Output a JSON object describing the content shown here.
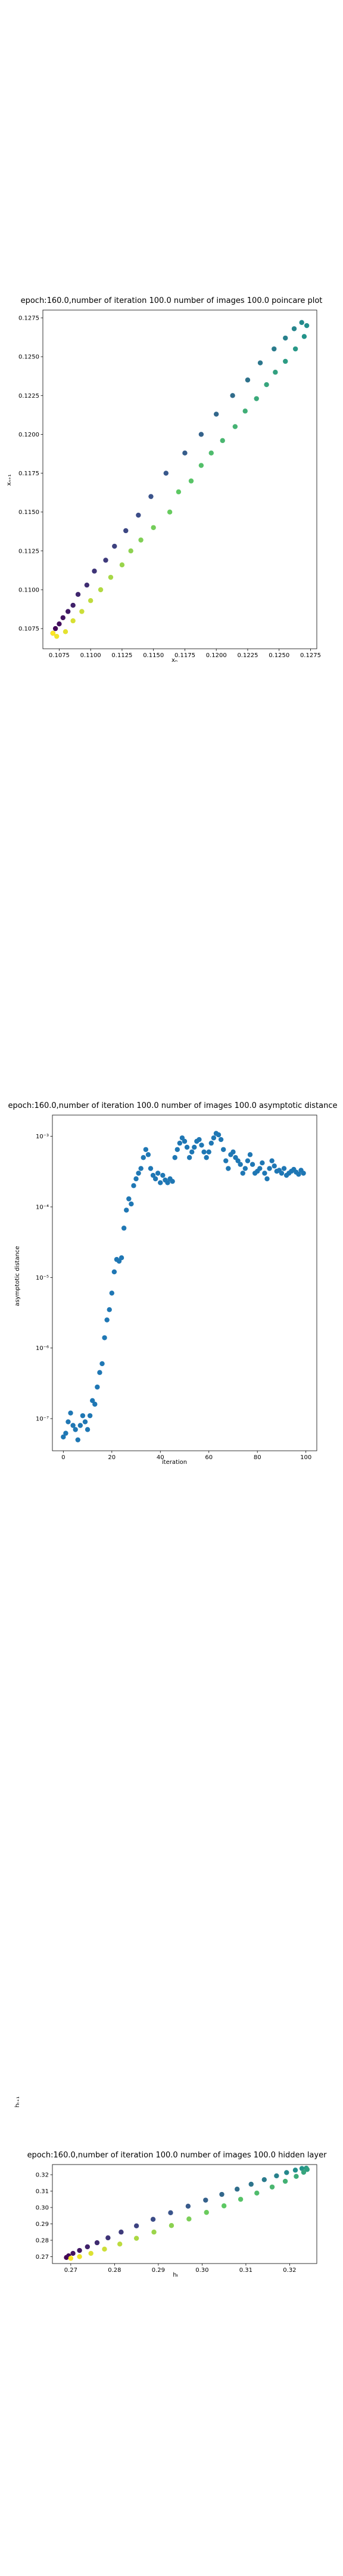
{
  "page": {
    "background": "#ffffff"
  },
  "chart_data": [
    {
      "type": "scatter",
      "title": "epoch:160.0,number of iteration 100.0 number of images 100.0 poincare plot",
      "xlabel": "xₙ",
      "ylabel": "xₙ₊₁",
      "xlim": [
        0.1062,
        0.128
      ],
      "ylim": [
        0.1062,
        0.128
      ],
      "xticks": [
        0.1075,
        0.11,
        0.1125,
        0.115,
        0.1175,
        0.12,
        0.1225,
        0.125,
        0.1275
      ],
      "xtick_labels": [
        "0.1075",
        "0.1100",
        "0.1125",
        "0.1150",
        "0.1175",
        "0.1200",
        "0.1225",
        "0.1250",
        "0.1275"
      ],
      "yticks": [
        0.1075,
        0.11,
        0.1125,
        0.115,
        0.1175,
        0.12,
        0.1225,
        0.125,
        0.1275
      ],
      "ytick_labels": [
        "0.1075",
        "0.1100",
        "0.1125",
        "0.1150",
        "0.1175",
        "0.1200",
        "0.1225",
        "0.1250",
        "0.1275"
      ],
      "colormap": "viridis",
      "x": [
        0.107,
        0.1072,
        0.1075,
        0.1078,
        0.1082,
        0.1086,
        0.109,
        0.1097,
        0.1103,
        0.1112,
        0.1119,
        0.1128,
        0.1138,
        0.1148,
        0.116,
        0.1175,
        0.1188,
        0.12,
        0.1213,
        0.1225,
        0.1235,
        0.1246,
        0.1255,
        0.1262,
        0.1268,
        0.1272,
        0.127,
        0.1263,
        0.1255,
        0.1247,
        0.124,
        0.1232,
        0.1223,
        0.1215,
        0.1205,
        0.1196,
        0.1188,
        0.118,
        0.117,
        0.1163,
        0.115,
        0.114,
        0.1132,
        0.1125,
        0.1116,
        0.1108,
        0.11,
        0.1093,
        0.1086,
        0.108,
        0.1073,
        0.107
      ],
      "y": [
        0.1072,
        0.1075,
        0.1078,
        0.1082,
        0.1086,
        0.109,
        0.1097,
        0.1103,
        0.1112,
        0.1119,
        0.1128,
        0.1138,
        0.1148,
        0.116,
        0.1175,
        0.1188,
        0.12,
        0.1213,
        0.1225,
        0.1235,
        0.1246,
        0.1255,
        0.1262,
        0.1268,
        0.1272,
        0.127,
        0.1263,
        0.1255,
        0.1247,
        0.124,
        0.1232,
        0.1223,
        0.1215,
        0.1205,
        0.1196,
        0.1188,
        0.118,
        0.117,
        0.1163,
        0.115,
        0.114,
        0.1132,
        0.1125,
        0.1116,
        0.1108,
        0.11,
        0.1093,
        0.1086,
        0.108,
        0.1073,
        0.107,
        0.1072
      ],
      "grid": false
    },
    {
      "type": "scatter",
      "title": "epoch:160.0,number of iteration 100.0  number of images 100.0 asymptotic distance",
      "xlabel": "iteration",
      "ylabel": "asymptotic distance",
      "log_y": true,
      "xlim": [
        -4.5,
        104.5
      ],
      "ylim": [
        3.5e-08,
        0.002
      ],
      "xticks": [
        0,
        20,
        40,
        60,
        80,
        100
      ],
      "xtick_labels": [
        "0",
        "20",
        "40",
        "60",
        "80",
        "100"
      ],
      "yticks": [
        1e-07,
        1e-06,
        1e-05,
        0.0001,
        0.001
      ],
      "ytick_labels": [
        "10⁻⁷",
        "10⁻⁶",
        "10⁻⁵",
        "10⁻⁴",
        "10⁻³"
      ],
      "color": "#1f77b4",
      "x": [
        0,
        1,
        2,
        3,
        4,
        5,
        6,
        7,
        8,
        9,
        10,
        11,
        12,
        13,
        14,
        15,
        16,
        17,
        18,
        19,
        20,
        21,
        22,
        23,
        24,
        25,
        26,
        27,
        28,
        29,
        30,
        31,
        32,
        33,
        34,
        35,
        36,
        37,
        38,
        39,
        40,
        41,
        42,
        43,
        44,
        45,
        46,
        47,
        48,
        49,
        50,
        51,
        52,
        53,
        54,
        55,
        56,
        57,
        58,
        59,
        60,
        61,
        62,
        63,
        64,
        65,
        66,
        67,
        68,
        69,
        70,
        71,
        72,
        73,
        74,
        75,
        76,
        77,
        78,
        79,
        80,
        81,
        82,
        83,
        84,
        85,
        86,
        87,
        88,
        89,
        90,
        91,
        92,
        93,
        94,
        95,
        96,
        97,
        98,
        99
      ],
      "y": [
        5.5e-08,
        6.2e-08,
        9e-08,
        1.2e-07,
        8e-08,
        7e-08,
        5e-08,
        8e-08,
        1.1e-07,
        9e-08,
        7e-08,
        1.1e-07,
        1.8e-07,
        1.6e-07,
        2.8e-07,
        4.5e-07,
        6e-07,
        1.4e-06,
        2.5e-06,
        3.5e-06,
        6e-06,
        1.2e-05,
        1.8e-05,
        1.7e-05,
        1.9e-05,
        5e-05,
        9e-05,
        0.00013,
        0.00011,
        0.0002,
        0.00025,
        0.0003,
        0.00035,
        0.0005,
        0.00065,
        0.00055,
        0.00035,
        0.00028,
        0.00025,
        0.0003,
        0.00022,
        0.00028,
        0.00024,
        0.00022,
        0.00025,
        0.00023,
        0.0005,
        0.00065,
        0.0008,
        0.00095,
        0.00085,
        0.0007,
        0.0005,
        0.0006,
        0.0007,
        0.00085,
        0.0009,
        0.00075,
        0.0006,
        0.0005,
        0.0006,
        0.0008,
        0.00095,
        0.0011,
        0.00105,
        0.0009,
        0.00065,
        0.00045,
        0.00035,
        0.00055,
        0.0006,
        0.0005,
        0.00045,
        0.0004,
        0.0003,
        0.00035,
        0.00045,
        0.00055,
        0.0004,
        0.0003,
        0.00032,
        0.00035,
        0.00042,
        0.0003,
        0.00025,
        0.00035,
        0.00045,
        0.00038,
        0.00032,
        0.00033,
        0.0003,
        0.00035,
        0.00028,
        0.0003,
        0.00032,
        0.00034,
        0.00031,
        0.00029,
        0.00033,
        0.0003
      ],
      "grid": false
    },
    {
      "type": "scatter",
      "title": "epoch:160.0,number of iteration 100.0  number of images 100.0 hidden layer",
      "xlabel": "hₜ",
      "ylabel": "hₜ₊₁",
      "xlim": [
        0.2658,
        0.3262
      ],
      "ylim": [
        0.2658,
        0.3262
      ],
      "xticks": [
        0.27,
        0.28,
        0.29,
        0.3,
        0.31,
        0.32
      ],
      "xtick_labels": [
        "0.27",
        "0.28",
        "0.29",
        "0.30",
        "0.31",
        "0.32"
      ],
      "yticks": [
        0.27,
        0.28,
        0.29,
        0.3,
        0.31,
        0.32
      ],
      "ytick_labels": [
        "0.27",
        "0.28",
        "0.29",
        "0.30",
        "0.31",
        "0.32"
      ],
      "colormap": "viridis",
      "x": [
        0.269,
        0.2695,
        0.2705,
        0.272,
        0.2738,
        0.276,
        0.2785,
        0.2815,
        0.285,
        0.2888,
        0.2928,
        0.2968,
        0.3008,
        0.3045,
        0.308,
        0.3112,
        0.3142,
        0.317,
        0.3193,
        0.3213,
        0.3228,
        0.3238,
        0.324,
        0.3232,
        0.3215,
        0.319,
        0.316,
        0.3125,
        0.3088,
        0.305,
        0.301,
        0.297,
        0.293,
        0.289,
        0.285,
        0.2812,
        0.2777,
        0.2746,
        0.272,
        0.27
      ],
      "y": [
        0.2695,
        0.2705,
        0.272,
        0.2738,
        0.276,
        0.2785,
        0.2815,
        0.285,
        0.2888,
        0.2928,
        0.2968,
        0.3008,
        0.3045,
        0.308,
        0.3112,
        0.3142,
        0.317,
        0.3193,
        0.3213,
        0.3228,
        0.3238,
        0.324,
        0.3232,
        0.3215,
        0.319,
        0.316,
        0.3125,
        0.3088,
        0.305,
        0.301,
        0.297,
        0.293,
        0.289,
        0.285,
        0.2812,
        0.2777,
        0.2746,
        0.272,
        0.27,
        0.269
      ],
      "grid": false
    }
  ]
}
